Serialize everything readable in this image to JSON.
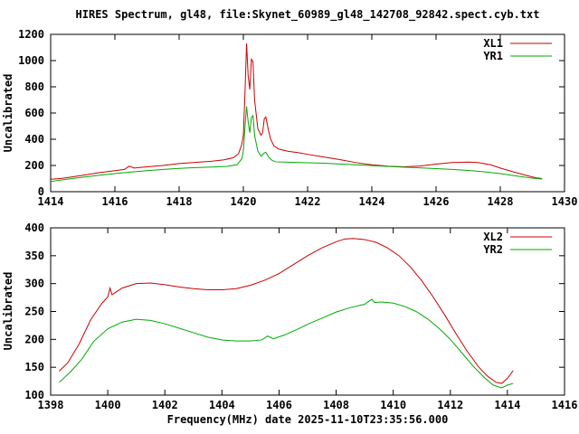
{
  "title": "HIRES Spectrum, gl48, file:Skynet_60989_gl48_142708_92842.spect.cyb.txt",
  "xlabel": "Frequency(MHz) date 2025-11-10T23:35:56.000",
  "colors": {
    "background": "#ffffff",
    "axis": "#000000",
    "series_red": "#cc0000",
    "series_green": "#00aa00"
  },
  "chart_data": [
    {
      "type": "line",
      "ylabel": "Uncalibrated",
      "xlim": [
        1414,
        1430
      ],
      "ylim": [
        0,
        1200
      ],
      "xticks": [
        1414,
        1416,
        1418,
        1420,
        1422,
        1424,
        1426,
        1428,
        1430
      ],
      "yticks": [
        0,
        200,
        400,
        600,
        800,
        1000,
        1200
      ],
      "legend_position": "top-right",
      "grid": false,
      "series": [
        {
          "name": "XL1",
          "color": "#cc0000",
          "x": [
            1414.0,
            1414.3,
            1414.6,
            1415.0,
            1415.5,
            1416.0,
            1416.3,
            1416.45,
            1416.6,
            1417.0,
            1417.5,
            1418.0,
            1418.5,
            1419.0,
            1419.4,
            1419.7,
            1419.85,
            1419.95,
            1420.0,
            1420.05,
            1420.1,
            1420.15,
            1420.2,
            1420.25,
            1420.3,
            1420.35,
            1420.45,
            1420.55,
            1420.6,
            1420.65,
            1420.7,
            1420.78,
            1420.85,
            1420.95,
            1421.1,
            1421.4,
            1421.7,
            1422.0,
            1422.5,
            1423.0,
            1423.5,
            1424.0,
            1424.5,
            1425.0,
            1425.5,
            1426.0,
            1426.5,
            1427.0,
            1427.3,
            1427.7,
            1428.0,
            1428.4,
            1428.8,
            1429.1,
            1429.3
          ],
          "y": [
            95,
            100,
            110,
            125,
            145,
            160,
            170,
            195,
            180,
            190,
            200,
            215,
            223,
            232,
            243,
            260,
            290,
            360,
            430,
            750,
            1130,
            880,
            780,
            1010,
            990,
            700,
            480,
            430,
            450,
            555,
            570,
            470,
            400,
            350,
            325,
            308,
            298,
            285,
            265,
            245,
            222,
            205,
            195,
            190,
            196,
            210,
            222,
            226,
            222,
            205,
            180,
            152,
            125,
            106,
            100
          ]
        },
        {
          "name": "YR1",
          "color": "#00aa00",
          "x": [
            1414.0,
            1414.5,
            1415.0,
            1415.5,
            1416.0,
            1416.5,
            1417.0,
            1417.5,
            1418.0,
            1418.5,
            1419.0,
            1419.5,
            1419.8,
            1419.95,
            1420.0,
            1420.05,
            1420.1,
            1420.15,
            1420.2,
            1420.25,
            1420.3,
            1420.35,
            1420.45,
            1420.55,
            1420.65,
            1420.7,
            1420.8,
            1420.9,
            1421.0,
            1421.5,
            1422.0,
            1422.5,
            1423.0,
            1423.5,
            1424.0,
            1424.5,
            1425.0,
            1425.5,
            1426.0,
            1426.5,
            1427.0,
            1427.5,
            1428.0,
            1428.5,
            1429.0,
            1429.3
          ],
          "y": [
            78,
            95,
            110,
            125,
            138,
            150,
            160,
            170,
            178,
            184,
            188,
            193,
            205,
            250,
            310,
            490,
            650,
            530,
            450,
            565,
            580,
            430,
            310,
            270,
            295,
            300,
            260,
            238,
            228,
            224,
            221,
            217,
            211,
            205,
            199,
            193,
            187,
            182,
            176,
            170,
            162,
            152,
            138,
            120,
            103,
            97
          ]
        }
      ]
    },
    {
      "type": "line",
      "ylabel": "Uncalibrated",
      "xlim": [
        1398,
        1416
      ],
      "ylim": [
        100,
        400
      ],
      "xticks": [
        1398,
        1400,
        1402,
        1404,
        1406,
        1408,
        1410,
        1412,
        1414,
        1416
      ],
      "yticks": [
        100,
        150,
        200,
        250,
        300,
        350,
        400
      ],
      "legend_position": "top-right",
      "grid": false,
      "series": [
        {
          "name": "XL2",
          "color": "#cc0000",
          "x": [
            1398.3,
            1398.6,
            1399.0,
            1399.4,
            1399.8,
            1400.0,
            1400.08,
            1400.15,
            1400.5,
            1401.0,
            1401.5,
            1402.0,
            1402.5,
            1403.0,
            1403.5,
            1404.0,
            1404.5,
            1405.0,
            1405.5,
            1406.0,
            1406.5,
            1407.0,
            1407.5,
            1408.0,
            1408.3,
            1408.6,
            1409.0,
            1409.4,
            1409.8,
            1410.2,
            1410.6,
            1411.0,
            1411.4,
            1411.8,
            1412.2,
            1412.6,
            1413.0,
            1413.3,
            1413.6,
            1413.8,
            1414.0,
            1414.2
          ],
          "y": [
            143,
            158,
            192,
            235,
            265,
            276,
            292,
            280,
            292,
            300,
            301,
            298,
            294,
            291,
            289,
            289,
            291,
            297,
            306,
            318,
            334,
            350,
            364,
            375,
            380,
            381,
            379,
            374,
            364,
            350,
            330,
            305,
            276,
            244,
            210,
            178,
            150,
            134,
            123,
            121,
            130,
            144
          ]
        },
        {
          "name": "YR2",
          "color": "#00aa00",
          "x": [
            1398.3,
            1398.7,
            1399.1,
            1399.5,
            1400.0,
            1400.5,
            1401.0,
            1401.5,
            1402.0,
            1402.5,
            1403.0,
            1403.5,
            1404.0,
            1404.5,
            1405.0,
            1405.4,
            1405.6,
            1405.8,
            1406.2,
            1406.6,
            1407.0,
            1407.5,
            1408.0,
            1408.5,
            1409.0,
            1409.25,
            1409.35,
            1409.6,
            1410.0,
            1410.4,
            1410.8,
            1411.2,
            1411.6,
            1412.0,
            1412.4,
            1412.8,
            1413.2,
            1413.5,
            1413.8,
            1414.0,
            1414.2
          ],
          "y": [
            123,
            142,
            165,
            196,
            219,
            231,
            236,
            234,
            228,
            220,
            212,
            204,
            199,
            197,
            197,
            199,
            206,
            201,
            208,
            217,
            227,
            238,
            249,
            257,
            263,
            272,
            266,
            267,
            265,
            259,
            250,
            237,
            220,
            200,
            176,
            152,
            131,
            118,
            113,
            118,
            121
          ]
        }
      ]
    }
  ]
}
